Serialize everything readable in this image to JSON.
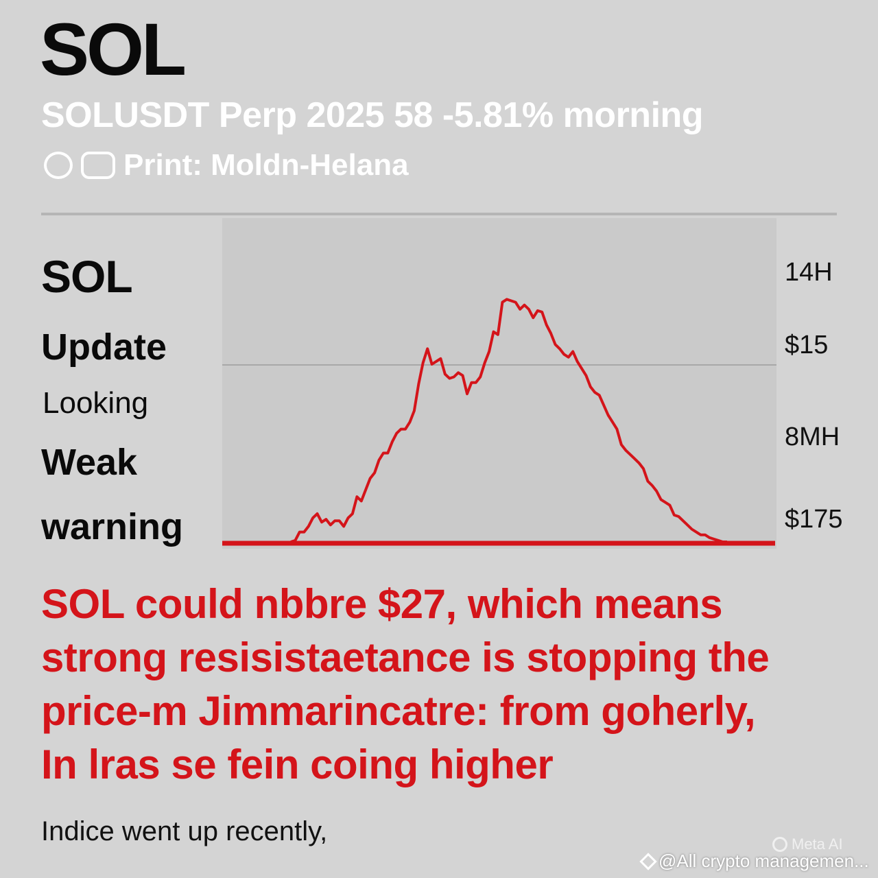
{
  "header": {
    "title": "SOL",
    "subtitle": "SOLUSDT Perp 2025 58 -5.81% morning",
    "source": "Print: Moldn-Helana"
  },
  "left_labels": {
    "sol": "SOL",
    "update": "Update",
    "looking": "Looking",
    "weak": "Weak",
    "warning": "warning"
  },
  "right_labels": [
    "14H",
    "$15",
    "8MH",
    "$175"
  ],
  "chart_data": {
    "type": "line",
    "title": "",
    "xlabel": "",
    "ylabel": "",
    "x": [
      0,
      1,
      2,
      3,
      4,
      5,
      6,
      7,
      8,
      9,
      10,
      11,
      12,
      13,
      14,
      15,
      16,
      17,
      18,
      19,
      20,
      21,
      22,
      23,
      24,
      25,
      26,
      27,
      28,
      29,
      30,
      31,
      32,
      33,
      34,
      35,
      36,
      37,
      38,
      39,
      40,
      41,
      42,
      43,
      44,
      45,
      46,
      47,
      48,
      49,
      50,
      51,
      52,
      53,
      54,
      55,
      56,
      57,
      58,
      59,
      60,
      61,
      62,
      63,
      64,
      65,
      66,
      67,
      68,
      69,
      70,
      71,
      72,
      73,
      74,
      75,
      76,
      77,
      78,
      79,
      80,
      81,
      82,
      83,
      84,
      85,
      86,
      87,
      88,
      89,
      90,
      91,
      92,
      93,
      94,
      95,
      96,
      97,
      98,
      99
    ],
    "y": [
      0,
      2,
      14,
      14,
      22,
      34,
      40,
      28,
      32,
      24,
      30,
      30,
      22,
      34,
      40,
      64,
      58,
      74,
      90,
      98,
      116,
      126,
      126,
      142,
      154,
      160,
      160,
      170,
      186,
      224,
      254,
      274,
      252,
      256,
      260,
      238,
      232,
      234,
      240,
      236,
      210,
      226,
      226,
      234,
      254,
      270,
      298,
      294,
      340,
      344,
      342,
      340,
      330,
      336,
      330,
      318,
      328,
      326,
      308,
      296,
      280,
      274,
      266,
      262,
      270,
      256,
      246,
      236,
      220,
      212,
      208,
      194,
      180,
      170,
      160,
      138,
      130,
      124,
      118,
      112,
      104,
      86,
      80,
      72,
      60,
      56,
      52,
      38,
      36,
      30,
      24,
      18,
      14,
      10,
      10,
      6,
      4,
      2,
      0,
      0
    ],
    "ylim": [
      0,
      360
    ],
    "line_color": "#d4141a",
    "grid": true
  },
  "body": {
    "lines": [
      "SOL could nbbre $27, which means",
      "strong resisistaetance is stopping the",
      "price-m Jimmarincatre: from goherly,",
      "In lras se fein coing higher"
    ]
  },
  "footnote": "Indice went up recently,",
  "watermarks": {
    "meta": "Meta AI",
    "handle": "@All crypto managemen..."
  }
}
